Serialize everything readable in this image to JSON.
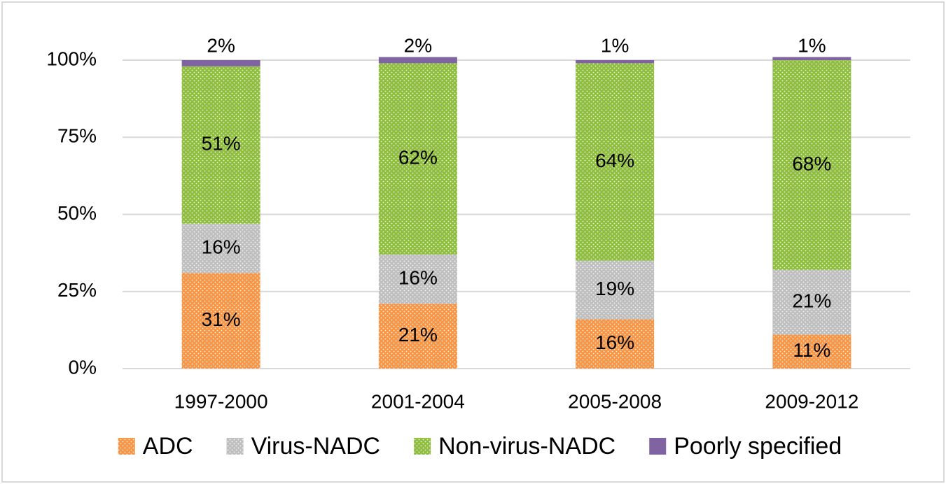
{
  "chart_data": {
    "type": "stacked-bar",
    "categories": [
      "1997-2000",
      "2001-2004",
      "2005-2008",
      "2009-2012"
    ],
    "series": [
      {
        "name": "ADC",
        "color": "#f79646",
        "values": [
          31,
          21,
          16,
          11
        ],
        "value_labels": [
          "31%",
          "21%",
          "16%",
          "11%"
        ]
      },
      {
        "name": "Virus-NADC",
        "color": "#bfbfbf",
        "values": [
          16,
          16,
          19,
          21
        ],
        "value_labels": [
          "16%",
          "16%",
          "19%",
          "21%"
        ]
      },
      {
        "name": "Non-virus-NADC",
        "color": "#8fbe3f",
        "values": [
          51,
          62,
          64,
          68
        ],
        "value_labels": [
          "51%",
          "62%",
          "64%",
          "68%"
        ]
      },
      {
        "name": "Poorly specified",
        "color": "#8064a2",
        "values": [
          2,
          2,
          1,
          1
        ],
        "value_labels": [
          "2%",
          "2%",
          "1%",
          "1%"
        ]
      }
    ],
    "ylim": [
      0,
      100
    ],
    "yticks": [
      {
        "value": 0,
        "label": "0%"
      },
      {
        "value": 25,
        "label": "25%"
      },
      {
        "value": 50,
        "label": "50%"
      },
      {
        "value": 75,
        "label": "75%"
      },
      {
        "value": 100,
        "label": "100%"
      }
    ],
    "grid": true,
    "legend": "bottom"
  }
}
